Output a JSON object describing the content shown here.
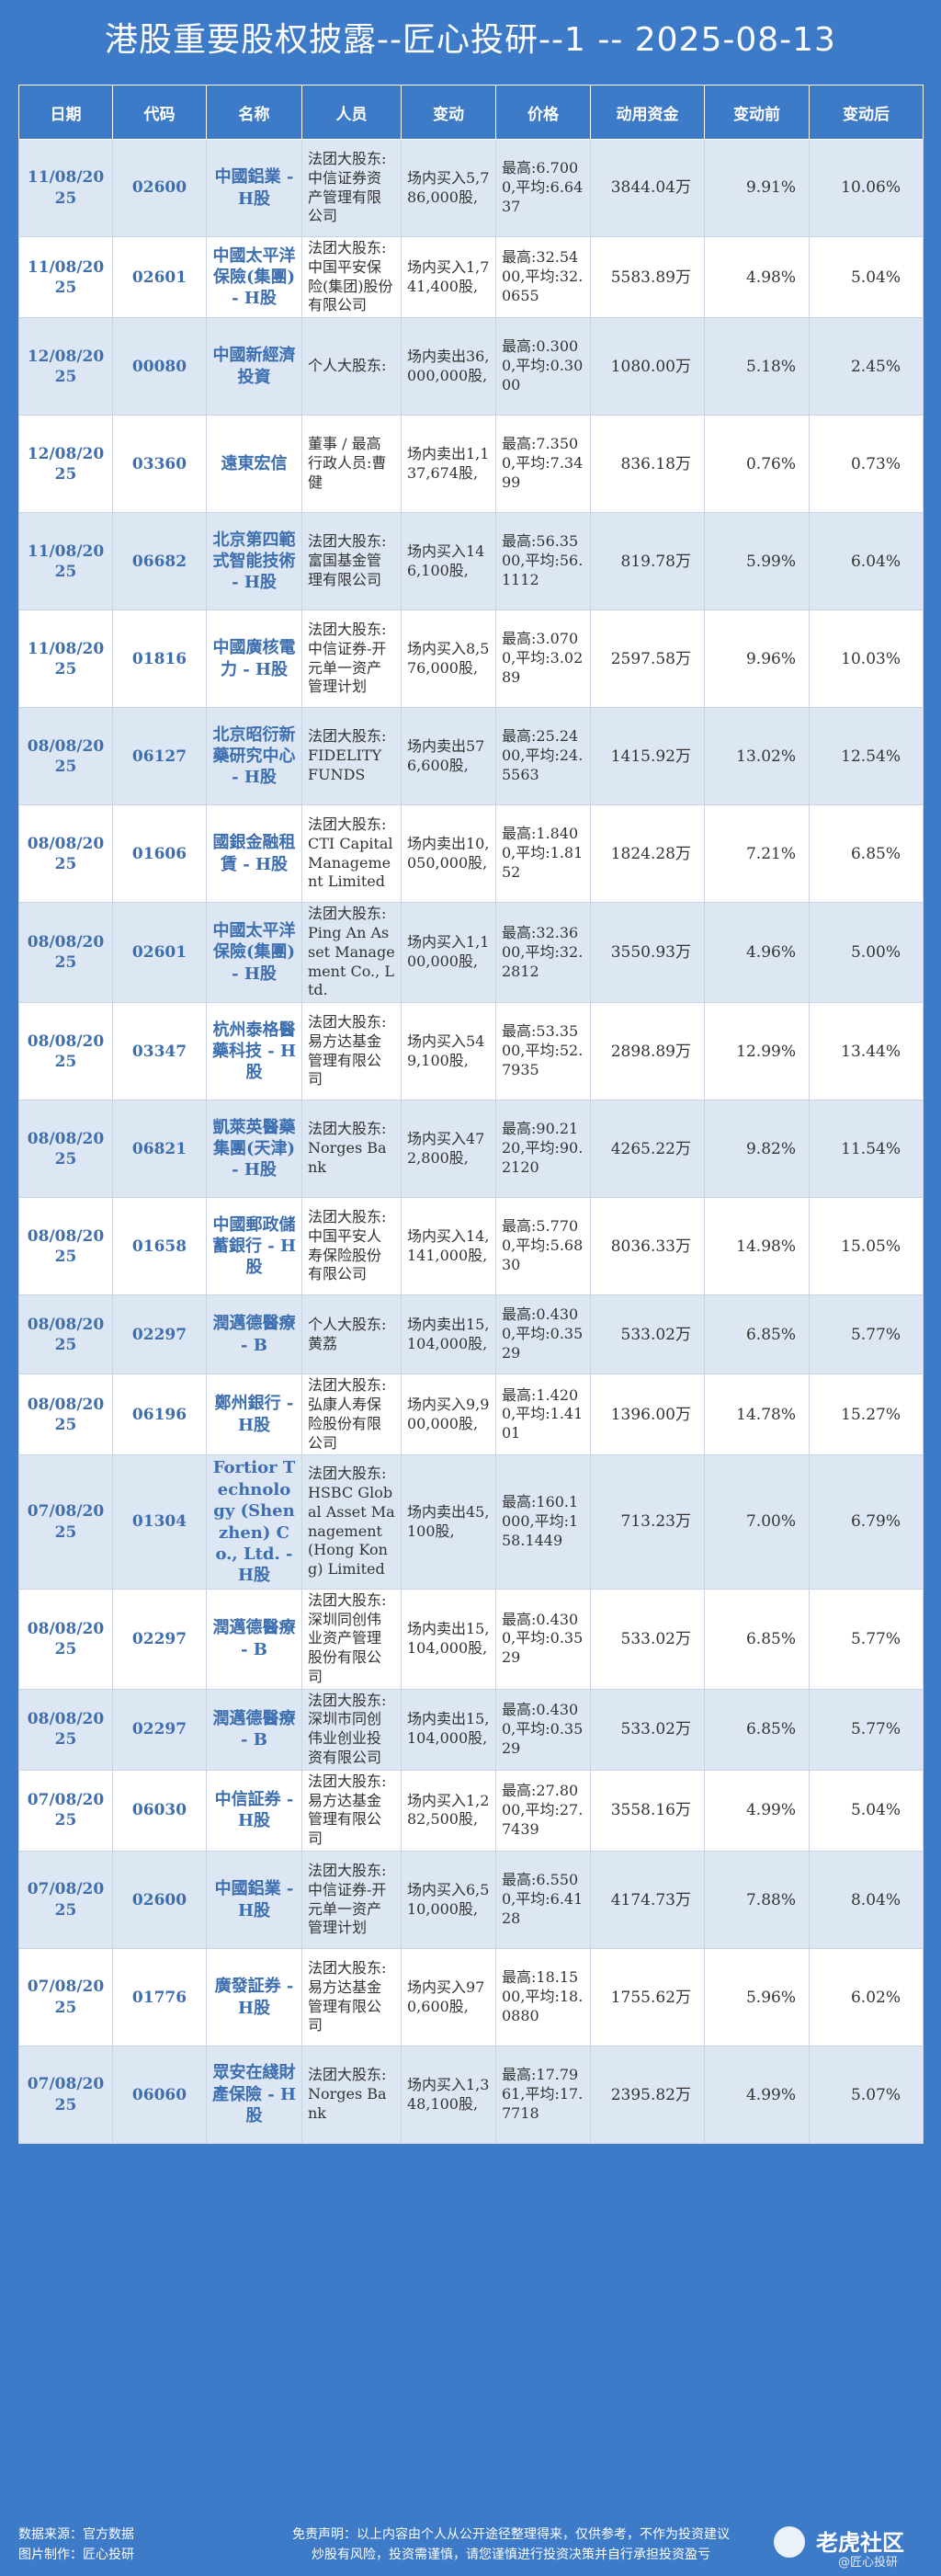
{
  "header": {
    "title": "港股重要股权披露--匠心投研--1 -- 2025-08-13"
  },
  "table": {
    "columns": [
      "日期",
      "代码",
      "名称",
      "人员",
      "变动",
      "价格",
      "动用资金",
      "变动前",
      "变动后"
    ],
    "rows": [
      {
        "date": "11/08/2025",
        "code": "02600",
        "name": "中國鋁業 - H股",
        "person": "法团大股东:中信证券资产管理有限公司",
        "change": "场内买入5,786,000股,",
        "price": "最高:6.7000,平均:6.6437",
        "fund": "3844.04万",
        "before": "9.91%",
        "after": "10.06%"
      },
      {
        "date": "11/08/2025",
        "code": "02601",
        "name": "中國太平洋保險(集團) - H股",
        "person": "法团大股东:中国平安保险(集团)股份有限公司",
        "change": "场内买入1,741,400股,",
        "price": "最高:32.5400,平均:32.0655",
        "fund": "5583.89万",
        "before": "4.98%",
        "after": "5.04%"
      },
      {
        "date": "12/08/2025",
        "code": "00080",
        "name": "中國新經濟投資",
        "person": "个人大股东:",
        "change": "场内卖出36,000,000股,",
        "price": "最高:0.3000,平均:0.3000",
        "fund": "1080.00万",
        "before": "5.18%",
        "after": "2.45%"
      },
      {
        "date": "12/08/2025",
        "code": "03360",
        "name": "遠東宏信",
        "person": "董事 / 最高行政人员:曹健",
        "change": "场内卖出1,137,674股,",
        "price": "最高:7.3500,平均:7.3499",
        "fund": "836.18万",
        "before": "0.76%",
        "after": "0.73%"
      },
      {
        "date": "11/08/2025",
        "code": "06682",
        "name": "北京第四範式智能技術 - H股",
        "person": "法团大股东:富国基金管理有限公司",
        "change": "场内买入146,100股,",
        "price": "最高:56.3500,平均:56.1112",
        "fund": "819.78万",
        "before": "5.99%",
        "after": "6.04%"
      },
      {
        "date": "11/08/2025",
        "code": "01816",
        "name": "中國廣核電力 - H股",
        "person": "法团大股东:中信证券-开元单一资产管理计划",
        "change": "场内买入8,576,000股,",
        "price": "最高:3.0700,平均:3.0289",
        "fund": "2597.58万",
        "before": "9.96%",
        "after": "10.03%"
      },
      {
        "date": "08/08/2025",
        "code": "06127",
        "name": "北京昭衍新藥研究中心 - H股",
        "person": "法团大股东:FIDELITY FUNDS",
        "change": "场内卖出576,600股,",
        "price": "最高:25.2400,平均:24.5563",
        "fund": "1415.92万",
        "before": "13.02%",
        "after": "12.54%"
      },
      {
        "date": "08/08/2025",
        "code": "01606",
        "name": "國銀金融租賃 - H股",
        "person": "法团大股东:CTI Capital Management Limited",
        "change": "场内卖出10,050,000股,",
        "price": "最高:1.8400,平均:1.8152",
        "fund": "1824.28万",
        "before": "7.21%",
        "after": "6.85%"
      },
      {
        "date": "08/08/2025",
        "code": "02601",
        "name": "中國太平洋保險(集團) - H股",
        "person": "法团大股东:Ping An Asset Management Co., Ltd.",
        "change": "场内买入1,100,000股,",
        "price": "最高:32.3600,平均:32.2812",
        "fund": "3550.93万",
        "before": "4.96%",
        "after": "5.00%"
      },
      {
        "date": "08/08/2025",
        "code": "03347",
        "name": "杭州泰格醫藥科技 - H股",
        "person": "法团大股东:易方达基金管理有限公司",
        "change": "场内买入549,100股,",
        "price": "最高:53.3500,平均:52.7935",
        "fund": "2898.89万",
        "before": "12.99%",
        "after": "13.44%"
      },
      {
        "date": "08/08/2025",
        "code": "06821",
        "name": "凱萊英醫藥集團(天津) - H股",
        "person": "法团大股东:Norges Bank",
        "change": "场内买入472,800股,",
        "price": "最高:90.2120,平均:90.2120",
        "fund": "4265.22万",
        "before": "9.82%",
        "after": "11.54%"
      },
      {
        "date": "08/08/2025",
        "code": "01658",
        "name": "中國郵政儲蓄銀行 - H股",
        "person": "法团大股东:中国平安人寿保险股份有限公司",
        "change": "场内买入14,141,000股,",
        "price": "最高:5.7700,平均:5.6830",
        "fund": "8036.33万",
        "before": "14.98%",
        "after": "15.05%"
      },
      {
        "date": "08/08/2025",
        "code": "02297",
        "name": "潤邁德醫療 - B",
        "person": "个人大股东:黄荔",
        "change": "场内卖出15,104,000股,",
        "price": "最高:0.4300,平均:0.3529",
        "fund": "533.02万",
        "before": "6.85%",
        "after": "5.77%"
      },
      {
        "date": "08/08/2025",
        "code": "06196",
        "name": "鄭州銀行 - H股",
        "person": "法团大股东:弘康人寿保险股份有限公司",
        "change": "场内买入9,900,000股,",
        "price": "最高:1.4200,平均:1.4101",
        "fund": "1396.00万",
        "before": "14.78%",
        "after": "15.27%"
      },
      {
        "date": "07/08/2025",
        "code": "01304",
        "name": "Fortior Technology (Shenzhen) Co., Ltd. - H股",
        "person": "法团大股东:HSBC Global Asset Management (Hong Kong) Limited",
        "change": "场内卖出45,100股,",
        "price": "最高:160.1000,平均:158.1449",
        "fund": "713.23万",
        "before": "7.00%",
        "after": "6.79%"
      },
      {
        "date": "08/08/2025",
        "code": "02297",
        "name": "潤邁德醫療 - B",
        "person": "法团大股东:深圳同创伟业资产管理股份有限公司",
        "change": "场内卖出15,104,000股,",
        "price": "最高:0.4300,平均:0.3529",
        "fund": "533.02万",
        "before": "6.85%",
        "after": "5.77%"
      },
      {
        "date": "08/08/2025",
        "code": "02297",
        "name": "潤邁德醫療 - B",
        "person": "法团大股东:深圳市同创伟业创业投资有限公司",
        "change": "场内卖出15,104,000股,",
        "price": "最高:0.4300,平均:0.3529",
        "fund": "533.02万",
        "before": "6.85%",
        "after": "5.77%"
      },
      {
        "date": "07/08/2025",
        "code": "06030",
        "name": "中信証券 - H股",
        "person": "法团大股东:易方达基金管理有限公司",
        "change": "场内买入1,282,500股,",
        "price": "最高:27.8000,平均:27.7439",
        "fund": "3558.16万",
        "before": "4.99%",
        "after": "5.04%"
      },
      {
        "date": "07/08/2025",
        "code": "02600",
        "name": "中國鋁業 - H股",
        "person": "法团大股东:中信证券-开元单一资产管理计划",
        "change": "场内买入6,510,000股,",
        "price": "最高:6.5500,平均:6.4128",
        "fund": "4174.73万",
        "before": "7.88%",
        "after": "8.04%"
      },
      {
        "date": "07/08/2025",
        "code": "01776",
        "name": "廣發証券 - H股",
        "person": "法团大股东:易方达基金管理有限公司",
        "change": "场内买入970,600股,",
        "price": "最高:18.1500,平均:18.0880",
        "fund": "1755.62万",
        "before": "5.96%",
        "after": "6.02%"
      },
      {
        "date": "07/08/2025",
        "code": "06060",
        "name": "眾安在綫財產保險 - H股",
        "person": "法团大股东:Norges Bank",
        "change": "场内买入1,348,100股,",
        "price": "最高:17.7961,平均:17.7718",
        "fund": "2395.82万",
        "before": "4.99%",
        "after": "5.07%"
      }
    ]
  },
  "footer": {
    "source": "数据来源：官方数据",
    "maker": "图片制作：匠心投研",
    "disclaimer1": "免责声明：以上内容由个人从公开途径整理得来，仅供参考，不作为投资建议",
    "disclaimer2": "炒股有风险，投资需谨慎，请您谨慎进行投资决策并自行承担投资盈亏",
    "logo_main": "老虎社区",
    "logo_sub": "@匠心投研"
  },
  "colors": {
    "background": "#3d7ac7",
    "header_bg": "#3d7ac7",
    "stripe": "#dde7f4",
    "accent_text": "#3d6fb0"
  }
}
